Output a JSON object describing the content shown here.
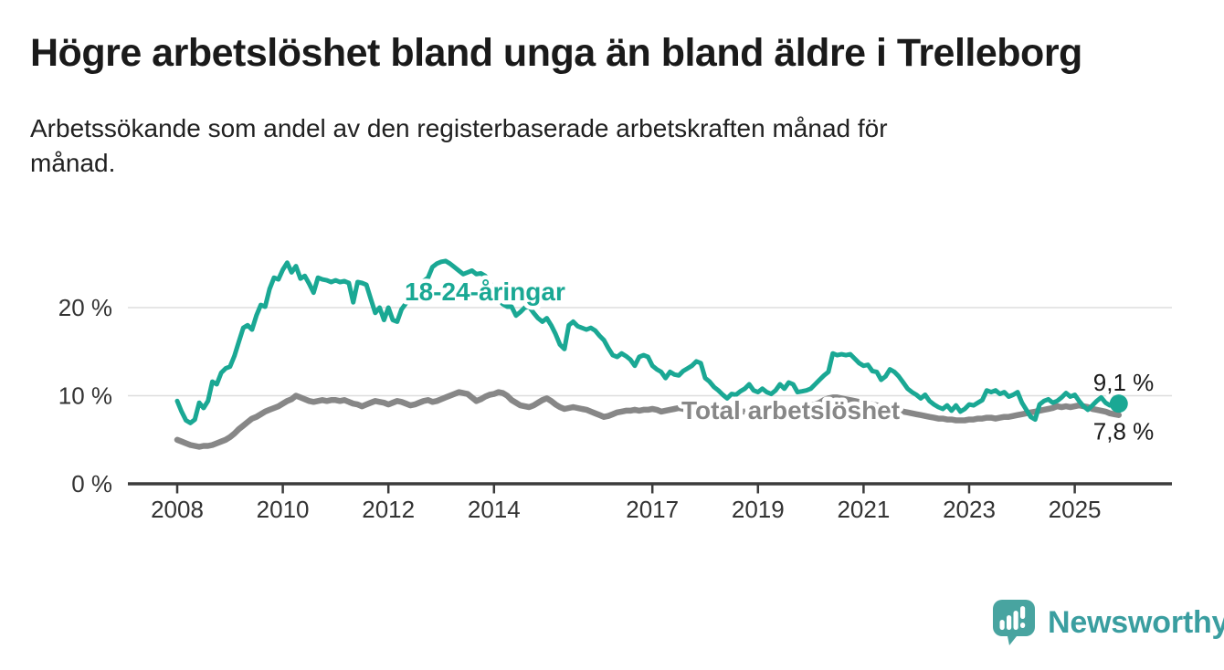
{
  "header": {
    "title": "Högre arbetslöshet bland unga än bland äldre i Trelleborg",
    "subtitle_line1": "Arbetssökande som andel av den registerbaserade arbetskraften månad för",
    "subtitle_line2": "månad."
  },
  "footer": {
    "logo_text": "Newsworthy",
    "logo_icon": "speech-bubble-bar-chart",
    "logo_mark_color": "#48A4A0",
    "logo_text_color": "#3A9EA0"
  },
  "colors": {
    "youth_line": "#1AA894",
    "total_line": "#878787",
    "gridline": "#DEDEDE",
    "axis": "#3B3B3B",
    "tick_text": "#333333",
    "end_label_text": "#1A1A1A"
  },
  "chart_data": {
    "type": "line",
    "title": "Högre arbetslöshet bland unga än bland äldre i Trelleborg",
    "subtitle": "Arbetssökande som andel av den registerbaserade arbetskraften månad för månad.",
    "frequency": "monthly",
    "start": "2008-01",
    "end": "2025-11",
    "ylim": [
      0,
      27
    ],
    "grid": "horizontal-only",
    "legend_position": "inline-labels",
    "y_ticks": [
      {
        "value": 0,
        "label": "0 %"
      },
      {
        "value": 10,
        "label": "10 %"
      },
      {
        "value": 20,
        "label": "20 %"
      }
    ],
    "x_ticks": [
      {
        "year": 2008,
        "label": "2008"
      },
      {
        "year": 2010,
        "label": "2010"
      },
      {
        "year": 2012,
        "label": "2012"
      },
      {
        "year": 2014,
        "label": "2014"
      },
      {
        "year": 2017,
        "label": "2017"
      },
      {
        "year": 2019,
        "label": "2019"
      },
      {
        "year": 2021,
        "label": "2021"
      },
      {
        "year": 2023,
        "label": "2023"
      },
      {
        "year": 2025,
        "label": "2025"
      }
    ],
    "series": [
      {
        "name": "18-24-åringar",
        "color": "#1AA894",
        "end_label": "9,1 %",
        "end_value": 9.1,
        "end_dot": true,
        "values": [
          9.4,
          8.2,
          7.2,
          6.9,
          7.3,
          9.2,
          8.6,
          9.4,
          11.6,
          11.3,
          12.6,
          13.1,
          13.3,
          14.5,
          16.1,
          17.7,
          18.0,
          17.5,
          19.1,
          20.3,
          20.1,
          22.1,
          23.4,
          23.2,
          24.3,
          25.1,
          24.0,
          24.7,
          23.3,
          23.6,
          22.7,
          21.7,
          23.4,
          23.2,
          23.1,
          22.9,
          23.1,
          22.9,
          23.0,
          22.8,
          20.6,
          22.9,
          22.8,
          22.6,
          21.0,
          19.4,
          20.0,
          18.6,
          20.0,
          18.6,
          18.4,
          19.8,
          20.5,
          21.2,
          21.9,
          22.5,
          23.0,
          23.4,
          24.6,
          25.0,
          25.2,
          25.3,
          25.0,
          24.6,
          24.2,
          23.8,
          24.0,
          24.2,
          23.8,
          23.9,
          23.6,
          23.0,
          22.0,
          21.0,
          20.4,
          20.1,
          20.1,
          19.1,
          19.5,
          20.0,
          20.1,
          19.4,
          18.8,
          18.4,
          18.8,
          18.0,
          17.0,
          15.8,
          15.3,
          18.0,
          18.4,
          17.9,
          17.7,
          17.5,
          17.7,
          17.4,
          16.8,
          16.3,
          15.4,
          14.6,
          14.4,
          14.8,
          14.5,
          14.1,
          13.4,
          14.4,
          14.6,
          14.4,
          13.4,
          13.0,
          12.7,
          12.0,
          12.7,
          12.4,
          12.3,
          12.8,
          13.1,
          13.4,
          13.9,
          13.7,
          12.0,
          11.6,
          11.0,
          10.6,
          10.1,
          9.7,
          10.2,
          10.1,
          10.5,
          10.8,
          11.3,
          10.6,
          10.4,
          10.8,
          10.4,
          10.2,
          10.6,
          11.3,
          10.8,
          11.5,
          11.3,
          10.4,
          10.5,
          10.6,
          10.8,
          11.3,
          11.8,
          12.3,
          12.7,
          14.8,
          14.6,
          14.7,
          14.6,
          14.7,
          14.2,
          13.7,
          13.4,
          13.5,
          12.8,
          12.7,
          11.8,
          12.2,
          13.0,
          12.7,
          12.2,
          11.5,
          10.8,
          10.4,
          10.1,
          9.7,
          10.1,
          9.4,
          9.0,
          8.7,
          8.5,
          8.9,
          8.3,
          8.9,
          8.2,
          8.5,
          9.0,
          8.9,
          9.2,
          9.5,
          10.6,
          10.4,
          10.6,
          10.2,
          10.4,
          9.9,
          10.1,
          10.4,
          9.2,
          8.4,
          7.6,
          7.3,
          9.0,
          9.4,
          9.6,
          9.2,
          9.4,
          9.8,
          10.3,
          9.9,
          10.1,
          9.4,
          8.8,
          8.4,
          8.9,
          9.4,
          9.8,
          9.2,
          8.9,
          9.0,
          9.1
        ]
      },
      {
        "name": "Total arbetslöshet",
        "color": "#878787",
        "end_label": "7,8 %",
        "end_value": 7.8,
        "end_dot": false,
        "values": [
          5.0,
          4.8,
          4.6,
          4.4,
          4.3,
          4.2,
          4.3,
          4.3,
          4.4,
          4.6,
          4.8,
          5.0,
          5.3,
          5.7,
          6.2,
          6.6,
          7.0,
          7.4,
          7.6,
          7.9,
          8.2,
          8.4,
          8.6,
          8.8,
          9.1,
          9.4,
          9.6,
          10.0,
          9.8,
          9.6,
          9.4,
          9.3,
          9.4,
          9.5,
          9.4,
          9.5,
          9.5,
          9.4,
          9.5,
          9.3,
          9.1,
          9.0,
          8.8,
          9.0,
          9.2,
          9.4,
          9.3,
          9.2,
          9.0,
          9.2,
          9.4,
          9.3,
          9.1,
          8.9,
          9.0,
          9.2,
          9.4,
          9.5,
          9.3,
          9.4,
          9.6,
          9.8,
          10.0,
          10.2,
          10.4,
          10.3,
          10.2,
          9.8,
          9.4,
          9.6,
          9.9,
          10.1,
          10.2,
          10.4,
          10.3,
          10.0,
          9.5,
          9.2,
          8.9,
          8.8,
          8.7,
          8.9,
          9.2,
          9.5,
          9.7,
          9.4,
          9.0,
          8.7,
          8.5,
          8.6,
          8.7,
          8.6,
          8.5,
          8.4,
          8.2,
          8.0,
          7.8,
          7.6,
          7.7,
          7.9,
          8.1,
          8.2,
          8.3,
          8.3,
          8.4,
          8.3,
          8.4,
          8.4,
          8.5,
          8.4,
          8.2,
          8.3,
          8.4,
          8.5,
          8.6,
          8.5,
          8.4,
          8.5,
          8.6,
          8.5,
          8.4,
          8.3,
          8.2,
          8.1,
          8.0,
          8.0,
          8.1,
          8.1,
          8.2,
          8.2,
          8.3,
          8.3,
          8.3,
          8.4,
          8.4,
          8.3,
          8.3,
          8.4,
          8.5,
          8.5,
          8.6,
          8.6,
          8.7,
          8.8,
          8.9,
          9.0,
          9.2,
          9.5,
          9.7,
          9.8,
          9.8,
          9.7,
          9.6,
          9.5,
          9.4,
          9.3,
          9.2,
          9.1,
          9.0,
          8.9,
          8.8,
          8.7,
          8.6,
          8.5,
          8.4,
          8.2,
          8.1,
          8.0,
          7.9,
          7.8,
          7.7,
          7.6,
          7.5,
          7.4,
          7.4,
          7.3,
          7.3,
          7.2,
          7.2,
          7.2,
          7.3,
          7.3,
          7.4,
          7.4,
          7.5,
          7.5,
          7.4,
          7.5,
          7.6,
          7.6,
          7.7,
          7.8,
          7.9,
          8.0,
          8.1,
          8.2,
          8.3,
          8.4,
          8.5,
          8.6,
          8.8,
          8.7,
          8.8,
          8.7,
          8.8,
          8.9,
          8.8,
          8.7,
          8.5,
          8.4,
          8.3,
          8.2,
          8.0,
          7.9,
          7.8
        ]
      }
    ]
  }
}
